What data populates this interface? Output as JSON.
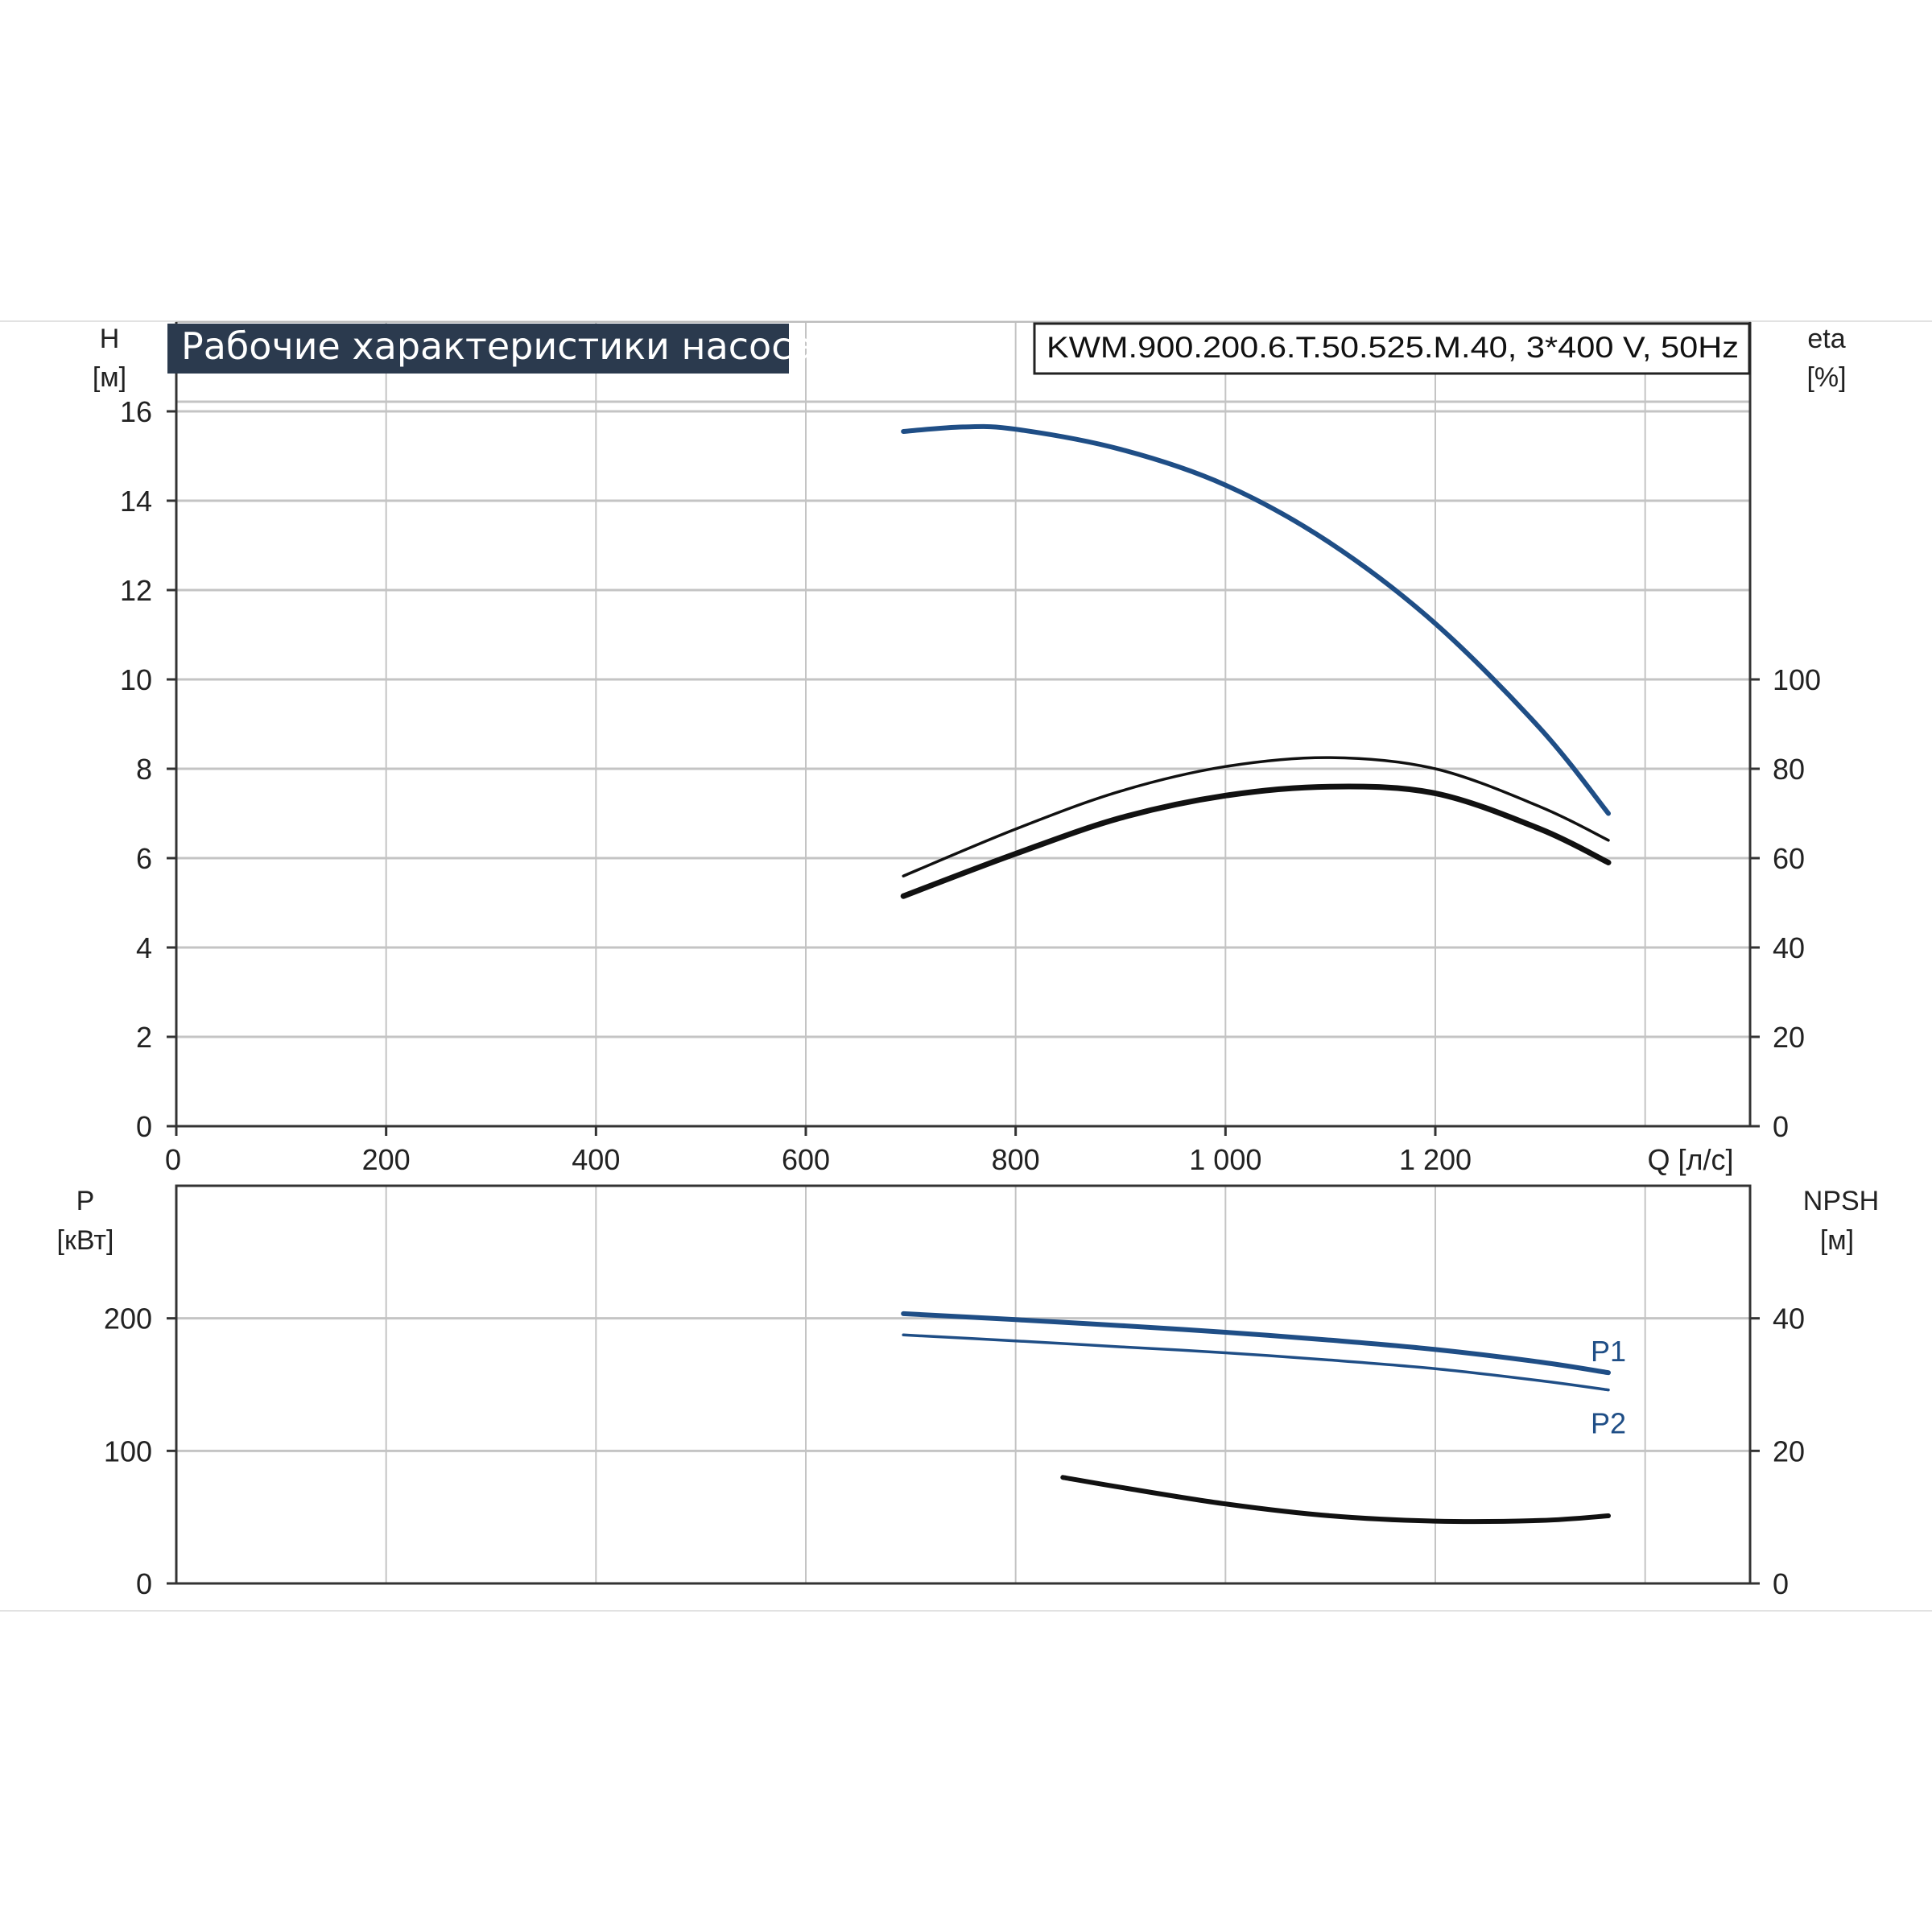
{
  "title": "Рабочие характеристики насоса",
  "model": "KWM.900.200.6.T.50.525.M.40, 3*400 V, 50Hz",
  "colors": {
    "blue": "#1f4e86",
    "black": "#111111",
    "grid": "#c4c4c4",
    "title_bg": "#2b3a4e"
  },
  "chart_data": [
    {
      "type": "line",
      "panel": "top",
      "xlabel": "Q [л/с]",
      "x_ticks": [
        "0",
        "200",
        "400",
        "600",
        "800",
        "1 000",
        "1 200"
      ],
      "xlim": [
        0,
        1500
      ],
      "y_left": {
        "label_line1": "H",
        "label_line2": "[м]",
        "ylim": [
          0,
          18
        ],
        "ticks": [
          "0",
          "2",
          "4",
          "6",
          "8",
          "10",
          "12",
          "14",
          "16"
        ]
      },
      "y_right": {
        "label_line1": "eta",
        "label_line2": "[%]",
        "ylim": [
          0,
          180
        ],
        "ticks": [
          "0",
          "20",
          "40",
          "60",
          "80",
          "100"
        ]
      },
      "grid": true,
      "series": [
        {
          "axis": "left",
          "color": "blue",
          "width": 6,
          "x": [
            693,
            750,
            800,
            900,
            1000,
            1100,
            1200,
            1300,
            1365
          ],
          "y": [
            15.55,
            15.65,
            15.6,
            15.15,
            14.35,
            13.05,
            11.25,
            8.9,
            7.0
          ]
        },
        {
          "axis": "right",
          "color": "black",
          "width": 3.5,
          "x": [
            693,
            800,
            900,
            1000,
            1100,
            1200,
            1300,
            1365
          ],
          "y": [
            56,
            66.5,
            75,
            80.5,
            82.5,
            80,
            71.5,
            64
          ]
        },
        {
          "axis": "right",
          "color": "black",
          "width": 7,
          "x": [
            693,
            800,
            900,
            1000,
            1100,
            1200,
            1300,
            1365
          ],
          "y": [
            51.5,
            61,
            69,
            74,
            76,
            74.5,
            66.5,
            59
          ]
        }
      ]
    },
    {
      "type": "line",
      "panel": "bottom",
      "xlim": [
        0,
        1500
      ],
      "y_left": {
        "label_line1": "P",
        "label_line2": "[кВт]",
        "ylim": [
          0,
          300
        ],
        "ticks": [
          "0",
          "100",
          "200"
        ]
      },
      "y_right": {
        "label_line1": "NPSH",
        "label_line2": "[м]",
        "ylim": [
          0,
          60
        ],
        "ticks": [
          "0",
          "20",
          "40"
        ]
      },
      "grid": true,
      "series": [
        {
          "name": "P1",
          "axis": "left",
          "color": "blue",
          "width": 6,
          "x": [
            693,
            800,
            900,
            1000,
            1100,
            1200,
            1300,
            1365
          ],
          "y": [
            203.5,
            199,
            194.5,
            189.5,
            183.5,
            176.5,
            167,
            159
          ]
        },
        {
          "name": "P2",
          "axis": "left",
          "color": "blue",
          "width": 3.5,
          "x": [
            693,
            800,
            900,
            1000,
            1100,
            1200,
            1300,
            1365
          ],
          "y": [
            187.5,
            183,
            178.5,
            174,
            168.5,
            162,
            153,
            146
          ]
        },
        {
          "axis": "right",
          "color": "black",
          "width": 6,
          "x": [
            845,
            900,
            1000,
            1100,
            1200,
            1300,
            1365
          ],
          "y": [
            16,
            14.5,
            12,
            10.2,
            9.4,
            9.5,
            10.2
          ]
        }
      ]
    }
  ]
}
